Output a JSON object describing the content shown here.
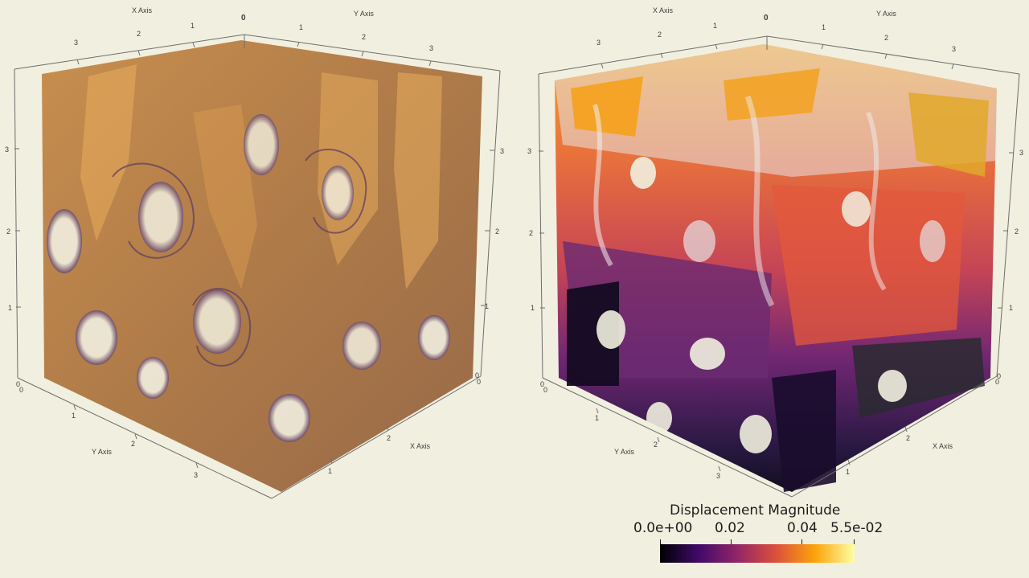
{
  "left_view": {
    "axes": {
      "x_title": "X Axis",
      "y_title": "Y Axis",
      "top_zero": "0",
      "top_x_ticks": [
        "3",
        "2",
        "1"
      ],
      "top_y_ticks": [
        "1",
        "2",
        "3"
      ],
      "left_vertical_ticks": [
        "3",
        "2",
        "1",
        "0"
      ],
      "left_zero_extra": "0",
      "right_vertical_ticks": [
        "3",
        "2",
        "1",
        "0"
      ],
      "right_zero_extra": "0",
      "bottom_y_ticks": [
        "1",
        "2",
        "3"
      ],
      "bottom_x_ticks": [
        "1",
        "2"
      ]
    },
    "colors": {
      "bone": "#b57a3c",
      "bone_light": "#e9ad5c",
      "bone_dark": "#6b4a6b"
    }
  },
  "right_view": {
    "axes": {
      "x_title": "X Axis",
      "y_title": "Y Axis",
      "top_zero": "0",
      "top_x_ticks": [
        "3",
        "2",
        "1"
      ],
      "top_y_ticks": [
        "1",
        "2",
        "3"
      ],
      "left_vertical_ticks": [
        "3",
        "2",
        "1",
        "0"
      ],
      "left_zero_extra": "0",
      "right_vertical_ticks": [
        "3",
        "2",
        "1",
        "0"
      ],
      "right_zero_extra": "0",
      "bottom_y_ticks": [
        "1",
        "2",
        "3"
      ],
      "bottom_x_ticks": [
        "1",
        "2"
      ]
    },
    "colorbar": {
      "title": "Displacement Magnitude",
      "labels": [
        "0.0e+00",
        "0.02",
        "0.04",
        "5.5e-02"
      ],
      "stops": [
        "#000004",
        "#420a68",
        "#932667",
        "#dd513a",
        "#fca50a",
        "#fcffa4"
      ]
    }
  }
}
